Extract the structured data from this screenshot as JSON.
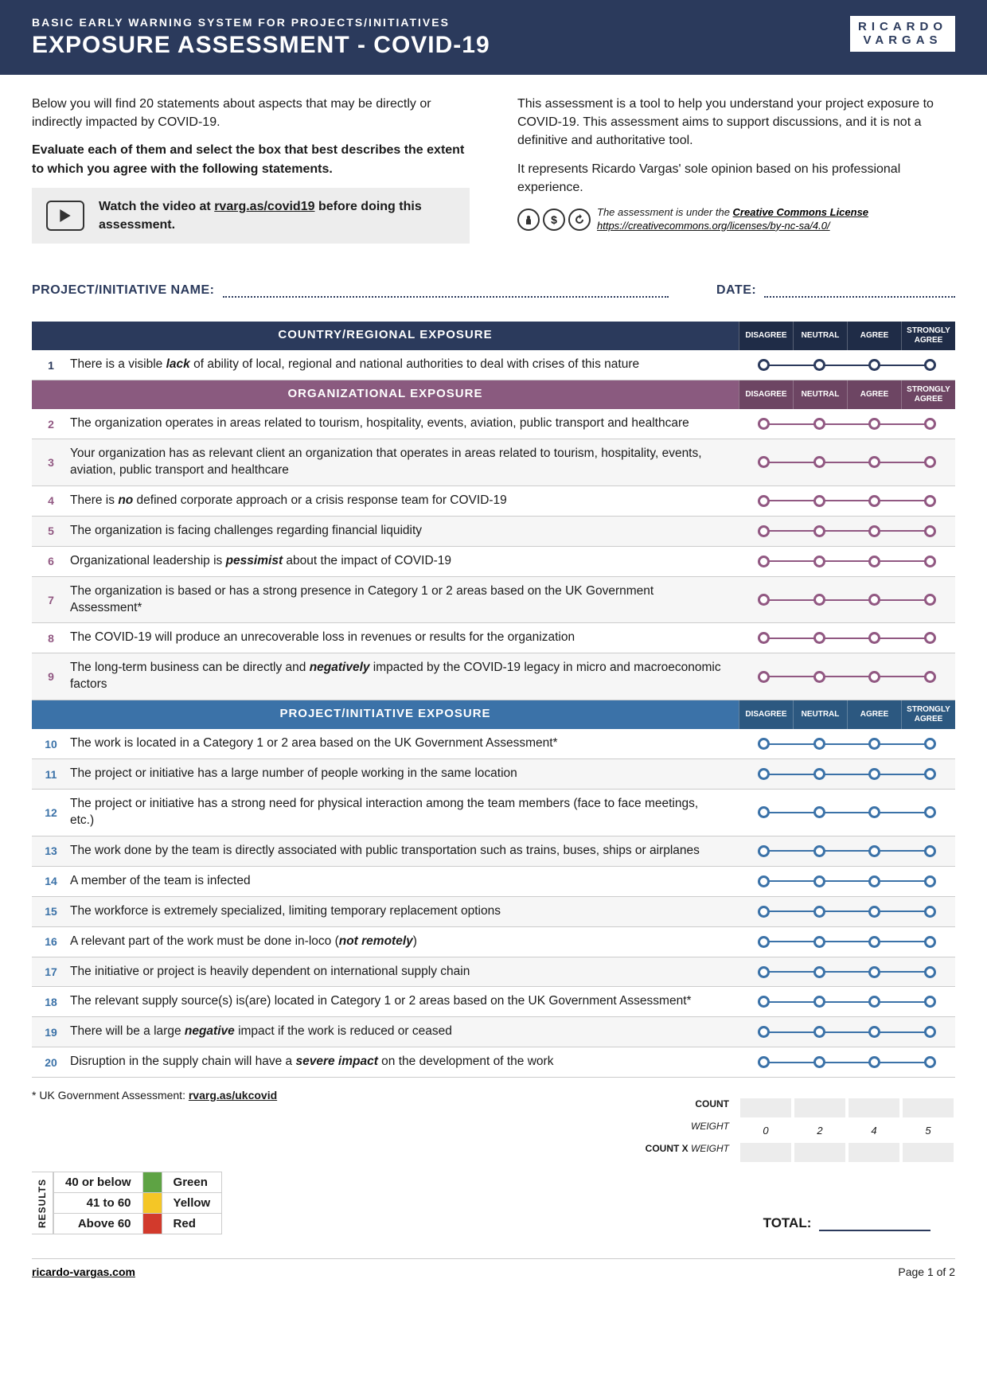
{
  "header": {
    "subtitle": "BASIC EARLY WARNING SYSTEM FOR PROJECTS/INITIATIVES",
    "title": "EXPOSURE ASSESSMENT - COVID-19",
    "logo_line1": "RICARDO",
    "logo_line2": "VARGAS"
  },
  "intro": {
    "left_p1_a": "Below you will find 20 statements about aspects that may be directly or indirectly impacted by COVID-19.",
    "left_p2_a": "Evaluate each of them and select the box that best describes the extent to which you agree with the following statements.",
    "video_a": "Watch the video at ",
    "video_link": "rvarg.as/covid19",
    "video_b": " before doing this assessment.",
    "right_p1": "This assessment is a tool to help you understand your project exposure to COVID-19. This assessment aims to support discussions, and it is not a definitive and authoritative tool.",
    "right_p2": "It represents Ricardo Vargas' sole opinion based on his professional experience.",
    "cc_a": "The assessment is under the ",
    "cc_link": "Creative Commons License",
    "cc_url": "https://creativecommons.org/licenses/by-nc-sa/4.0/"
  },
  "fields": {
    "project": "PROJECT/INITIATIVE NAME:",
    "date": "DATE:"
  },
  "colors": {
    "navy": "#2b3a5c",
    "navy_dark": "#1f2c47",
    "purple": "#8a5a7f",
    "purple_dark": "#6d4563",
    "blue": "#3b72a8",
    "blue_dark": "#2c5880",
    "green": "#5ea344",
    "yellow": "#f4c626",
    "red": "#d23a2c"
  },
  "scale_labels": [
    "DISAGREE",
    "NEUTRAL",
    "AGREE",
    "STRONGLY AGREE"
  ],
  "sections": [
    {
      "title": "COUNTRY/REGIONAL EXPOSURE",
      "color": "navy",
      "rows": [
        {
          "n": "1",
          "html": "There is a visible <b><i>lack</i></b> of ability of local, regional and national authorities to deal with crises of this nature"
        }
      ]
    },
    {
      "title": "ORGANIZATIONAL EXPOSURE",
      "color": "purple",
      "rows": [
        {
          "n": "2",
          "html": "The organization operates in areas related to tourism, hospitality, events, aviation, public transport and healthcare"
        },
        {
          "n": "3",
          "html": "Your organization has as relevant client an organization that operates in areas related to tourism, hospitality, events, aviation, public transport and healthcare"
        },
        {
          "n": "4",
          "html": "There is <b><i>no</i></b> defined corporate approach or a crisis response team for COVID-19"
        },
        {
          "n": "5",
          "html": "The organization is facing challenges regarding financial liquidity"
        },
        {
          "n": "6",
          "html": "Organizational leadership is <b><i>pessimist</i></b> about the impact of COVID-19"
        },
        {
          "n": "7",
          "html": "The organization is based or has a strong presence in Category 1 or 2 areas based on the UK Government Assessment*"
        },
        {
          "n": "8",
          "html": "The COVID-19 will produce an unrecoverable loss in revenues or results for the organization"
        },
        {
          "n": "9",
          "html": "The long-term business can be directly and <b><i>negatively</i></b> impacted by the COVID-19 legacy in micro and macroeconomic factors"
        }
      ]
    },
    {
      "title": "PROJECT/INITIATIVE EXPOSURE",
      "color": "blue",
      "rows": [
        {
          "n": "10",
          "html": "The work is located in a Category 1 or 2 area based on the UK Government Assessment*"
        },
        {
          "n": "11",
          "html": "The project or initiative has a large number of people working in the same location"
        },
        {
          "n": "12",
          "html": "The project or initiative has a strong need for physical interaction among the team members (face to face meetings, etc.)"
        },
        {
          "n": "13",
          "html": "The work done by the team is directly associated with public transportation such as trains, buses, ships or airplanes"
        },
        {
          "n": "14",
          "html": "A member of the team is infected"
        },
        {
          "n": "15",
          "html": "The workforce is extremely specialized, limiting temporary replacement options"
        },
        {
          "n": "16",
          "html": "A relevant part of the work must be done in-loco (<b><i>not remotely</i></b>)"
        },
        {
          "n": "17",
          "html": "The initiative or project is heavily dependent on international supply chain"
        },
        {
          "n": "18",
          "html": "The relevant supply source(s) is(are) located in Category 1 or 2 areas based on the UK Government Assessment*"
        },
        {
          "n": "19",
          "html": "There will be a large <b><i>negative</i></b> impact if the work is reduced or ceased"
        },
        {
          "n": "20",
          "html": "Disruption in the supply chain will have a <b><i>severe impact</i></b> on the development of the work"
        }
      ]
    }
  ],
  "footnote_a": "* UK Government Assessment: ",
  "footnote_link": "rvarg.as/ukcovid",
  "summary": {
    "count": "COUNT",
    "weight": "WEIGHT",
    "cxw": "COUNT X WEIGHT",
    "weights": [
      "0",
      "2",
      "4",
      "5"
    ],
    "total": "TOTAL:"
  },
  "results": {
    "label": "RESULTS",
    "rows": [
      {
        "range": "40 or below",
        "name": "Green",
        "color": "green"
      },
      {
        "range": "41 to 60",
        "name": "Yellow",
        "color": "yellow"
      },
      {
        "range": "Above 60",
        "name": "Red",
        "color": "red"
      }
    ]
  },
  "footer": {
    "site": "ricardo-vargas.com",
    "page": "Page 1 of 2"
  }
}
